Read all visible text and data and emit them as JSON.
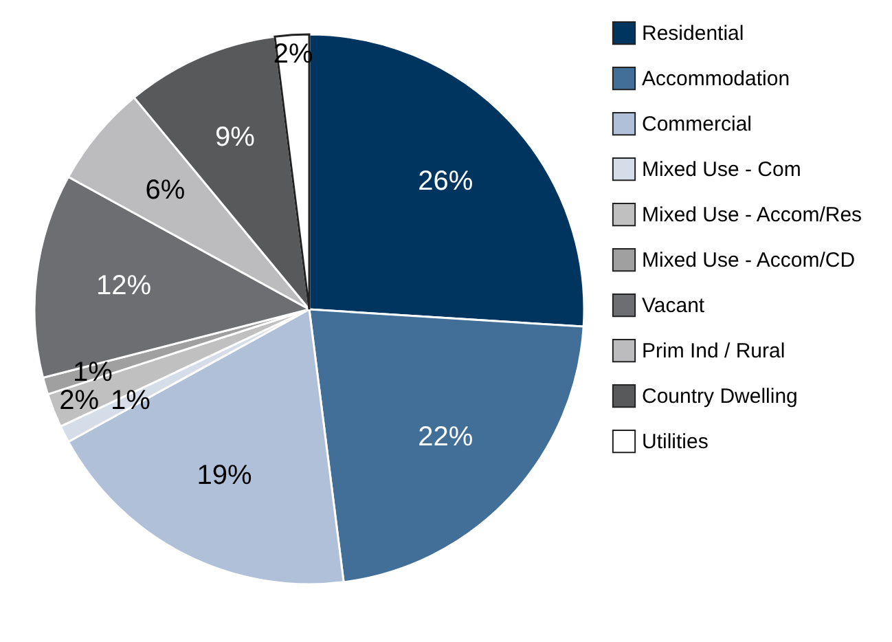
{
  "chart_data": {
    "type": "pie",
    "categories": [
      "Residential",
      "Accommodation",
      "Commercial",
      "Mixed Use - Com",
      "Mixed Use - Accom/Res",
      "Mixed Use - Accom/CD",
      "Vacant",
      "Prim Ind / Rural",
      "Country Dwelling",
      "Utilities"
    ],
    "values": [
      26,
      22,
      19,
      1,
      2,
      1,
      12,
      6,
      9,
      2
    ],
    "colors": [
      "#003560",
      "#426f97",
      "#b0c0d8",
      "#d5dde9",
      "#c0c0c0",
      "#a0a0a0",
      "#6d6e71",
      "#bcbcbe",
      "#58595b",
      "#ffffff"
    ],
    "value_labels": [
      "26%",
      "22%",
      "19%",
      "1%",
      "2%",
      "1%",
      "12%",
      "6%",
      "9%",
      "2%"
    ],
    "legend": "right"
  }
}
